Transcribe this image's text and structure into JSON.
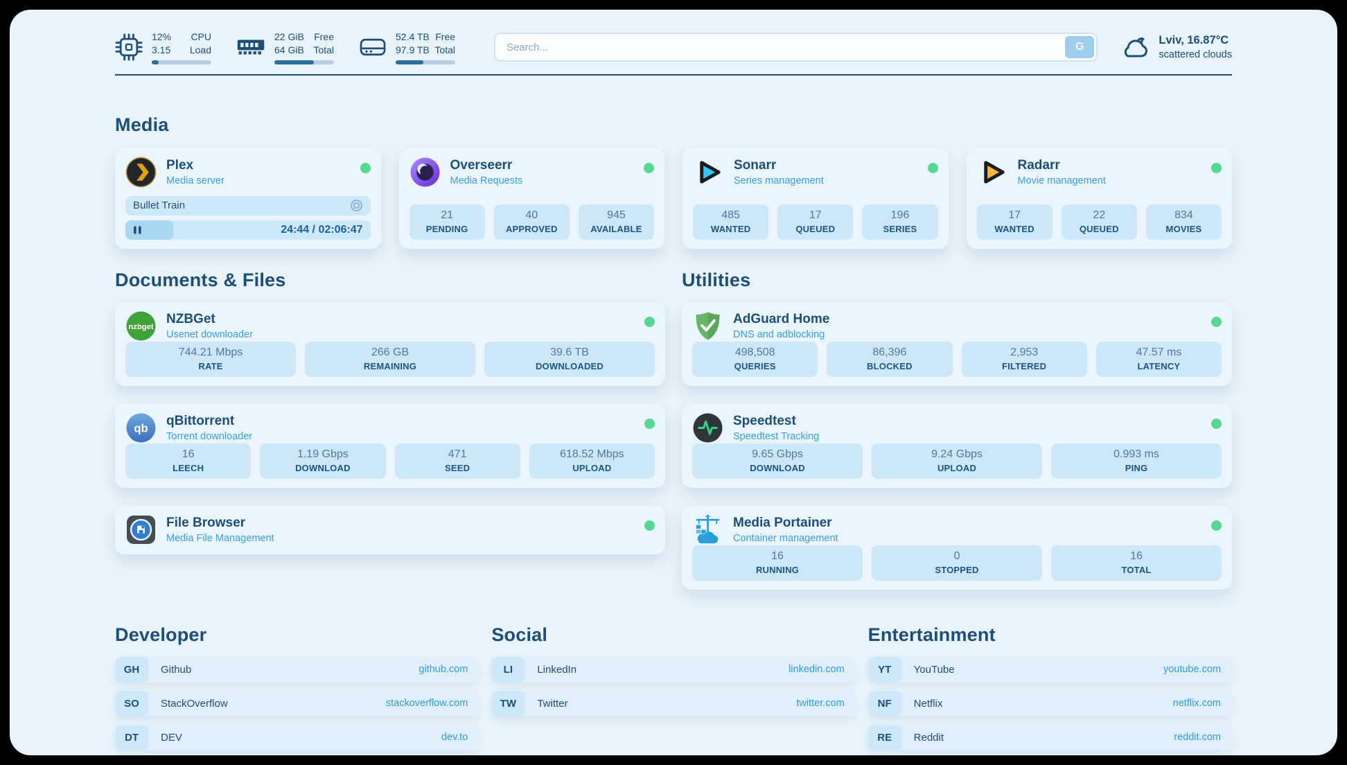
{
  "colors": {
    "page_bg": "#e8f3fb",
    "card_bg": "#eaf5fd",
    "pill_bg": "#cbe7f8",
    "navy_text": "#1d4e79",
    "link_blue": "#38a0e3",
    "status_green": "#55d991",
    "progress_fill": "#2e6e9e"
  },
  "header": {
    "system": [
      {
        "name": "cpu",
        "value_top": "12%",
        "value_bottom": "3.15",
        "label_top": "CPU",
        "label_bottom": "Load",
        "progress_pct": 12
      },
      {
        "name": "memory",
        "value_top": "22 GiB",
        "value_bottom": "64 GiB",
        "label_top": "Free",
        "label_bottom": "Total",
        "progress_pct": 66
      },
      {
        "name": "disk",
        "value_top": "52.4 TB",
        "value_bottom": "97.9 TB",
        "label_top": "Free",
        "label_bottom": "Total",
        "progress_pct": 46
      }
    ],
    "search": {
      "placeholder": "Search...",
      "button_label": "G"
    },
    "weather": {
      "location_temp": "Lviv, 16.87°C",
      "condition": "scattered clouds"
    }
  },
  "sections": {
    "media": {
      "title": "Media",
      "cards": [
        {
          "title": "Plex",
          "subtitle": "Media server",
          "status": "online",
          "now_playing": {
            "title": "Bullet Train",
            "time": "24:44 / 02:06:47",
            "progress_pct": 19.5
          }
        },
        {
          "title": "Overseerr",
          "subtitle": "Media Requests",
          "status": "online",
          "stats": [
            {
              "value": "21",
              "label": "PENDING"
            },
            {
              "value": "40",
              "label": "APPROVED"
            },
            {
              "value": "945",
              "label": "AVAILABLE"
            }
          ]
        },
        {
          "title": "Sonarr",
          "subtitle": "Series management",
          "status": "online",
          "stats": [
            {
              "value": "485",
              "label": "WANTED"
            },
            {
              "value": "17",
              "label": "QUEUED"
            },
            {
              "value": "196",
              "label": "SERIES"
            }
          ]
        },
        {
          "title": "Radarr",
          "subtitle": "Movie management",
          "status": "online",
          "stats": [
            {
              "value": "17",
              "label": "WANTED"
            },
            {
              "value": "22",
              "label": "QUEUED"
            },
            {
              "value": "834",
              "label": "MOVIES"
            }
          ]
        }
      ]
    },
    "documents": {
      "title": "Documents & Files",
      "cards": [
        {
          "title": "NZBGet",
          "subtitle": "Usenet downloader",
          "status": "online",
          "stats": [
            {
              "value": "744.21 Mbps",
              "label": "RATE"
            },
            {
              "value": "266 GB",
              "label": "REMAINING"
            },
            {
              "value": "39.6 TB",
              "label": "DOWNLOADED"
            }
          ]
        },
        {
          "title": "qBittorrent",
          "subtitle": "Torrent downloader",
          "status": "online",
          "stats": [
            {
              "value": "16",
              "label": "LEECH"
            },
            {
              "value": "1.19 Gbps",
              "label": "DOWNLOAD"
            },
            {
              "value": "471",
              "label": "SEED"
            },
            {
              "value": "618.52 Mbps",
              "label": "UPLOAD"
            }
          ]
        },
        {
          "title": "File Browser",
          "subtitle": "Media File Management",
          "status": "online",
          "stats": []
        }
      ]
    },
    "utilities": {
      "title": "Utilities",
      "cards": [
        {
          "title": "AdGuard Home",
          "subtitle": "DNS and adblocking",
          "status": "online",
          "stats": [
            {
              "value": "498,508",
              "label": "QUERIES"
            },
            {
              "value": "86,396",
              "label": "BLOCKED"
            },
            {
              "value": "2,953",
              "label": "FILTERED"
            },
            {
              "value": "47.57 ms",
              "label": "LATENCY"
            }
          ]
        },
        {
          "title": "Speedtest",
          "subtitle": "Speedtest Tracking",
          "status": "online",
          "stats": [
            {
              "value": "9.65 Gbps",
              "label": "DOWNLOAD"
            },
            {
              "value": "9.24 Gbps",
              "label": "UPLOAD"
            },
            {
              "value": "0.993 ms",
              "label": "PING"
            }
          ]
        },
        {
          "title": "Media Portainer",
          "subtitle": "Container management",
          "status": "online",
          "stats": [
            {
              "value": "16",
              "label": "RUNNING"
            },
            {
              "value": "0",
              "label": "STOPPED"
            },
            {
              "value": "16",
              "label": "TOTAL"
            }
          ]
        }
      ]
    }
  },
  "links": [
    {
      "title": "Developer",
      "items": [
        {
          "abbr": "GH",
          "name": "Github",
          "url": "github.com"
        },
        {
          "abbr": "SO",
          "name": "StackOverflow",
          "url": "stackoverflow.com"
        },
        {
          "abbr": "DT",
          "name": "DEV",
          "url": "dev.to"
        }
      ]
    },
    {
      "title": "Social",
      "items": [
        {
          "abbr": "LI",
          "name": "LinkedIn",
          "url": "linkedin.com"
        },
        {
          "abbr": "TW",
          "name": "Twitter",
          "url": "twitter.com"
        }
      ]
    },
    {
      "title": "Entertainment",
      "items": [
        {
          "abbr": "YT",
          "name": "YouTube",
          "url": "youtube.com"
        },
        {
          "abbr": "NF",
          "name": "Netflix",
          "url": "netflix.com"
        },
        {
          "abbr": "RE",
          "name": "Reddit",
          "url": "reddit.com"
        }
      ]
    }
  ]
}
